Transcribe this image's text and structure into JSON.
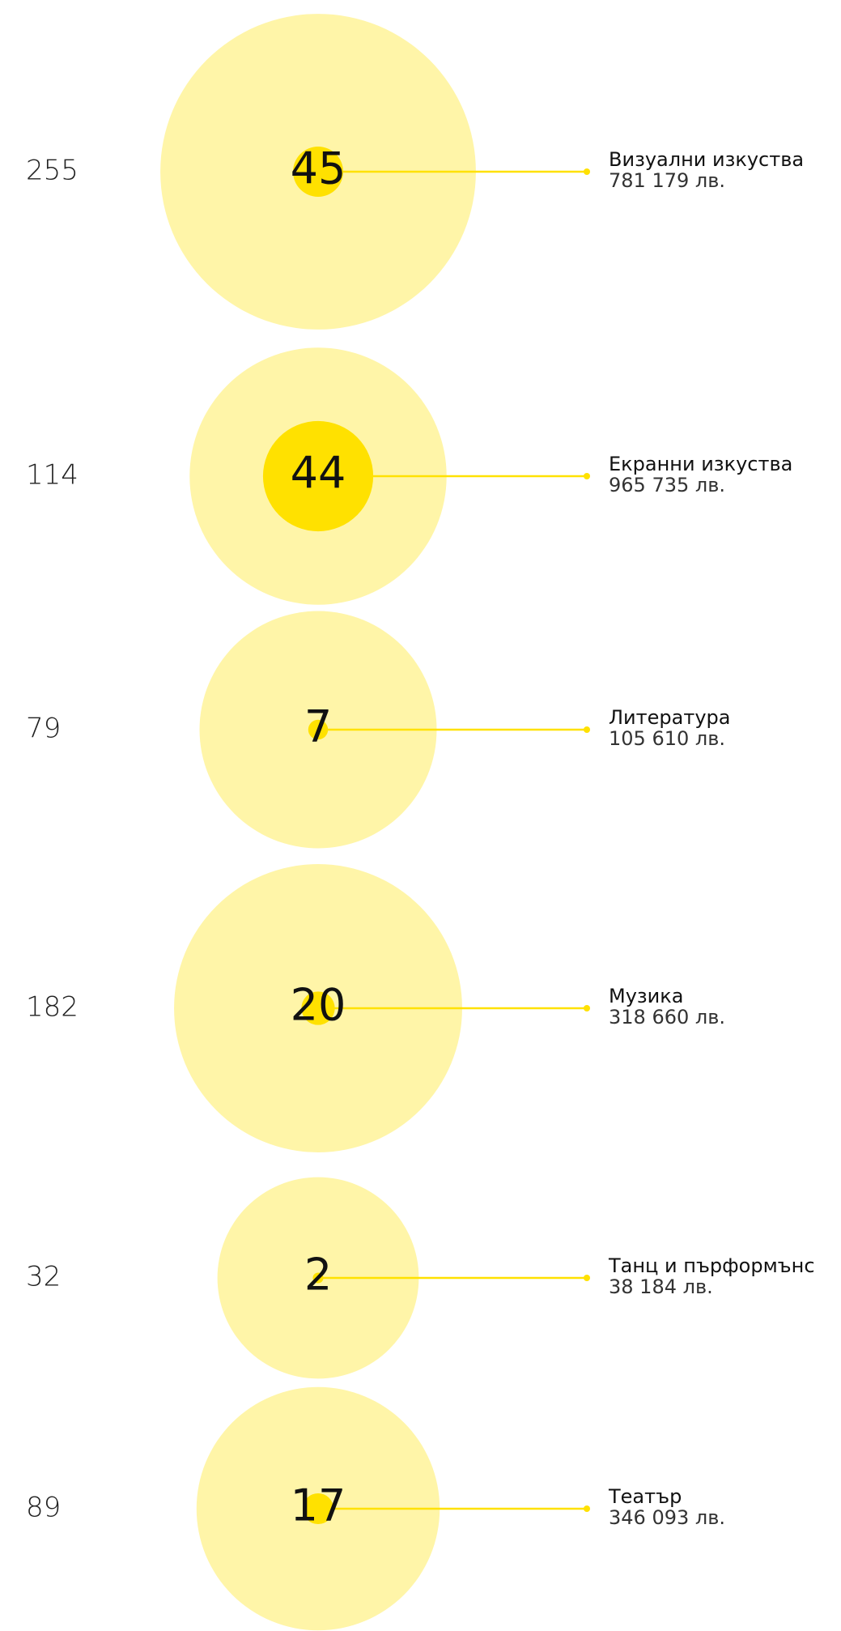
{
  "chart_data": {
    "type": "bubble",
    "categories": [
      "Визуални изкуства",
      "Екранни изкуства",
      "Литература",
      "Музика",
      "Танц и пърформънс",
      "Театър"
    ],
    "series": [
      {
        "color": "#fff5a8",
        "values": [
          255,
          114,
          79,
          182,
          32,
          89
        ]
      },
      {
        "color": "#ffe100",
        "values": [
          45,
          44,
          7,
          20,
          2,
          17
        ]
      },
      {
        "values": [
          781179,
          965735,
          105610,
          318660,
          38184,
          346093
        ],
        "value_labels": [
          "781 179 лв.",
          "965 735 лв.",
          "105 610 лв.",
          "318 660 лв.",
          "38 184 лв.",
          "346 093 лв."
        ]
      }
    ]
  }
}
